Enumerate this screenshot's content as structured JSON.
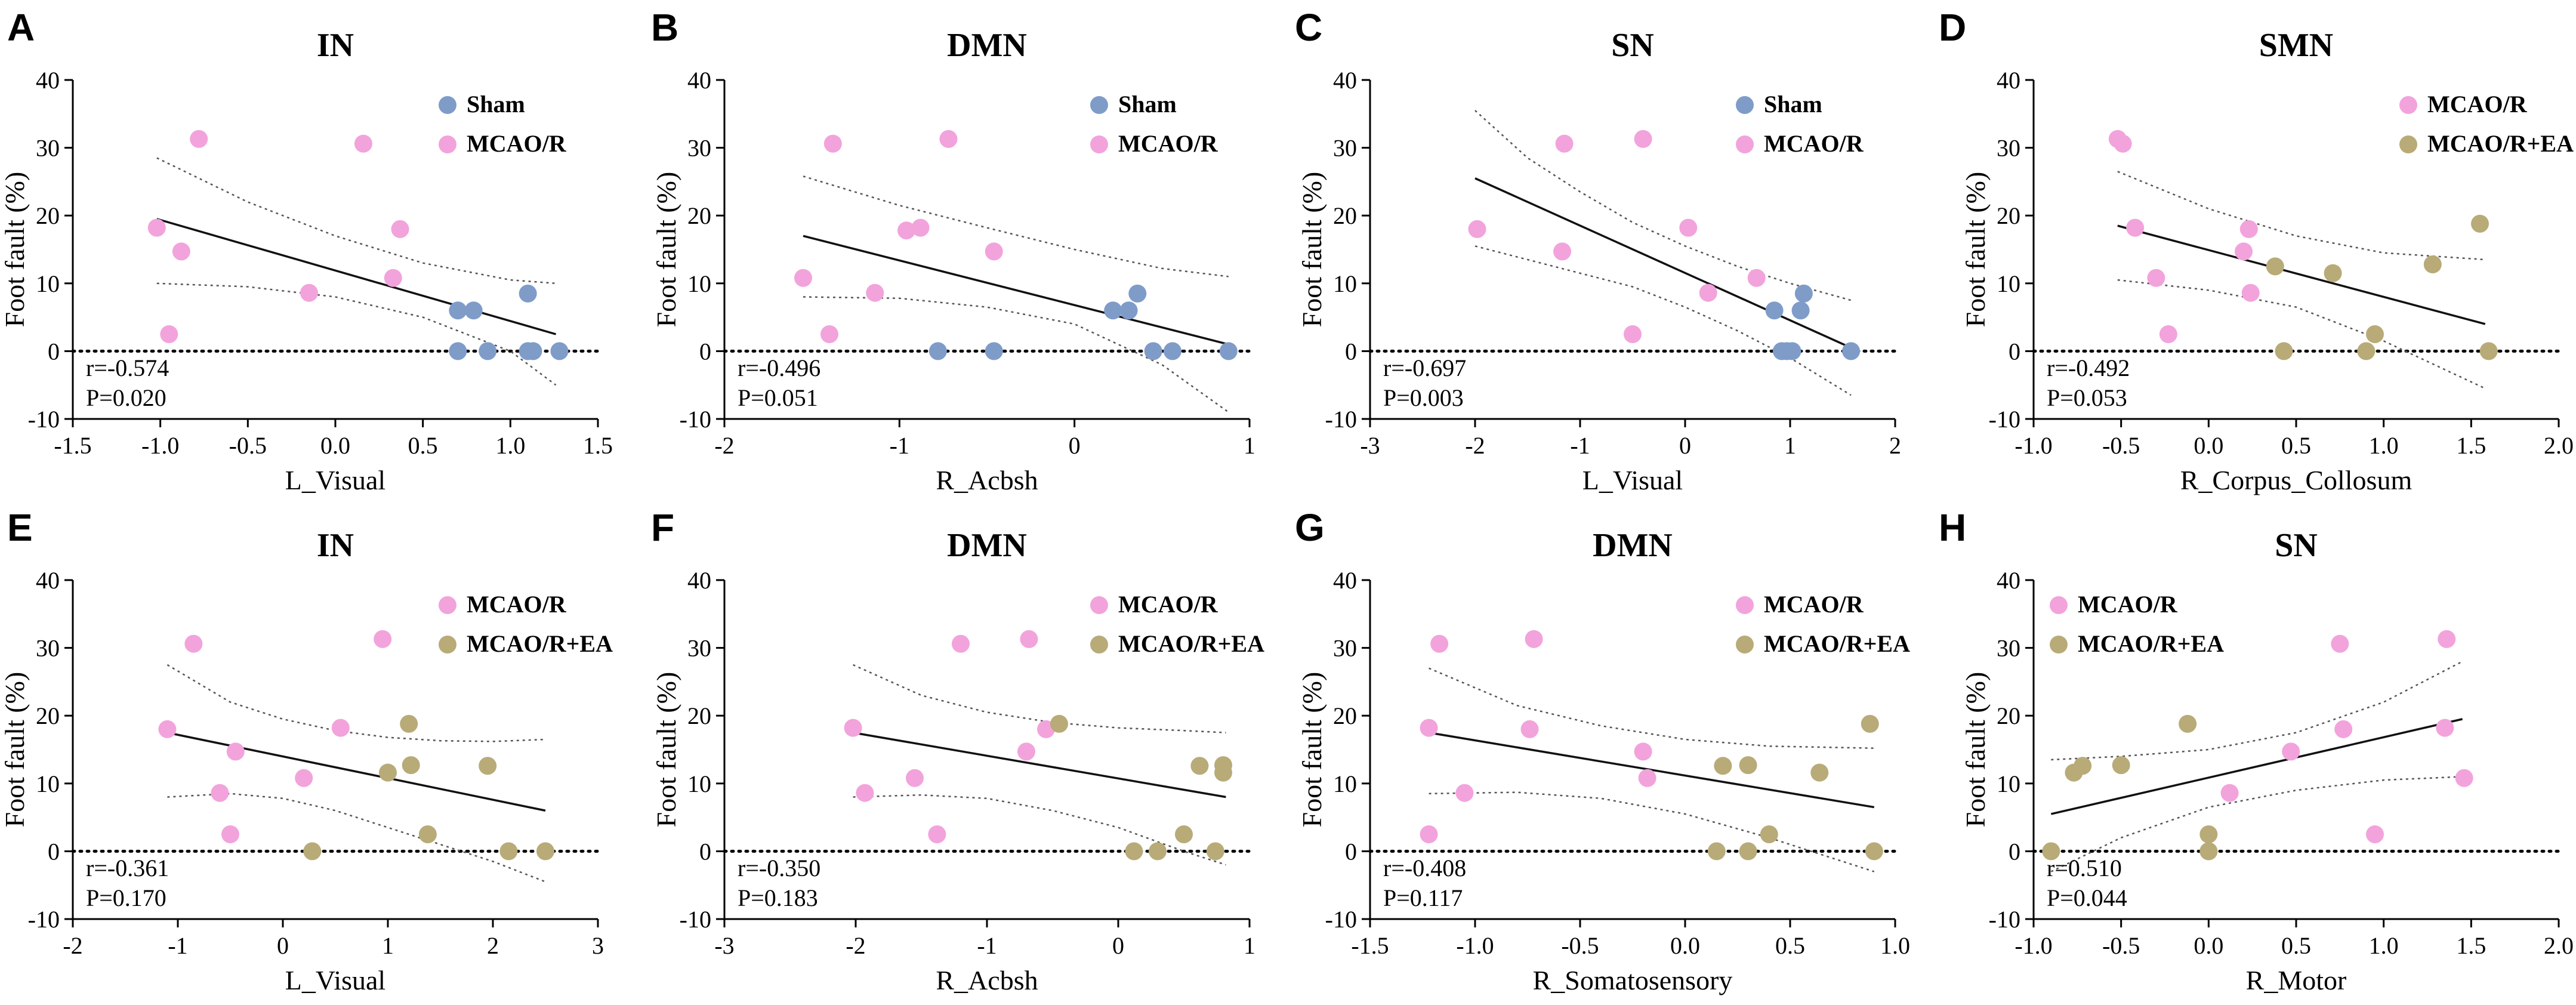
{
  "colors": {
    "sham": "#7f9cc9",
    "mcao": "#f2a3dc",
    "mcao_ea": "#b8ab78",
    "line": "#111111",
    "ci": "#555555"
  },
  "chart_data": [
    {
      "type": "scatter",
      "panel": "A",
      "title": "IN",
      "xlabel": "L_Visual",
      "ylabel": "Foot fault (%)",
      "xlim": [
        -1.5,
        1.5
      ],
      "xticks": [
        -1.5,
        -1.0,
        -0.5,
        0.0,
        0.5,
        1.0,
        1.5
      ],
      "xtick_labels": [
        "-1.5",
        "-1.0",
        "-0.5",
        "0.0",
        "0.5",
        "1.0",
        "1.5"
      ],
      "ylim": [
        -10,
        40
      ],
      "yticks": [
        -10,
        0,
        10,
        20,
        30,
        40
      ],
      "ytick_labels": [
        "-10",
        "0",
        "10",
        "20",
        "30",
        "40"
      ],
      "legend_position": "top-right",
      "stats": {
        "r": "r=-0.574",
        "p": "P=0.020"
      },
      "fit": {
        "x": [
          -1.02,
          1.26
        ],
        "y": [
          19.5,
          2.5
        ]
      },
      "ci_upper": {
        "x": [
          -1.02,
          -0.5,
          0.0,
          0.5,
          1.0,
          1.26
        ],
        "y": [
          28.5,
          22.0,
          17.0,
          13.0,
          10.5,
          10.0
        ]
      },
      "ci_lower": {
        "x": [
          -1.02,
          -0.5,
          0.0,
          0.5,
          1.0,
          1.26
        ],
        "y": [
          10.0,
          9.5,
          8.0,
          5.0,
          0.0,
          -5.0
        ]
      },
      "series": [
        {
          "name": "Sham",
          "color_key": "sham",
          "x": [
            0.7,
            0.79,
            0.7,
            0.87,
            1.1,
            1.13,
            1.28,
            1.1
          ],
          "y": [
            6,
            6,
            0,
            0,
            0,
            0,
            0,
            8.5
          ]
        },
        {
          "name": "MCAO/R",
          "color_key": "mcao",
          "x": [
            -1.02,
            -0.78,
            -0.88,
            -0.95,
            -0.15,
            0.16,
            0.37,
            0.33
          ],
          "y": [
            18.2,
            31.3,
            14.7,
            2.5,
            8.6,
            30.6,
            18,
            10.8
          ]
        }
      ]
    },
    {
      "type": "scatter",
      "panel": "B",
      "title": "DMN",
      "xlabel": "R_Acbsh",
      "ylabel": "Foot fault (%)",
      "xlim": [
        -2,
        1
      ],
      "xticks": [
        -2,
        -1,
        0,
        1
      ],
      "xtick_labels": [
        "-2",
        "-1",
        "0",
        "1"
      ],
      "ylim": [
        -10,
        40
      ],
      "yticks": [
        -10,
        0,
        10,
        20,
        30,
        40
      ],
      "ytick_labels": [
        "-10",
        "0",
        "10",
        "20",
        "30",
        "40"
      ],
      "legend_position": "top-right",
      "stats": {
        "r": "r=-0.496",
        "p": "P=0.051"
      },
      "fit": {
        "x": [
          -1.55,
          0.88
        ],
        "y": [
          17.0,
          1.0
        ]
      },
      "ci_upper": {
        "x": [
          -1.55,
          -1.0,
          -0.5,
          0.0,
          0.5,
          0.88
        ],
        "y": [
          25.8,
          21.5,
          18.2,
          15.0,
          12.2,
          11.0
        ]
      },
      "ci_lower": {
        "x": [
          -1.55,
          -1.0,
          -0.5,
          0.0,
          0.5,
          0.88
        ],
        "y": [
          8.0,
          7.8,
          6.5,
          4.0,
          -2.0,
          -9.0
        ]
      },
      "series": [
        {
          "name": "Sham",
          "color_key": "sham",
          "x": [
            0.22,
            0.31,
            0.36,
            -0.78,
            -0.46,
            0.45,
            0.56,
            0.88
          ],
          "y": [
            6,
            6,
            8.5,
            0,
            0,
            0,
            0,
            0
          ]
        },
        {
          "name": "MCAO/R",
          "color_key": "mcao",
          "x": [
            -1.55,
            -1.38,
            -1.4,
            -0.96,
            -0.88,
            -0.72,
            -1.14,
            -0.46
          ],
          "y": [
            10.8,
            30.6,
            2.5,
            17.8,
            18.2,
            31.3,
            8.6,
            14.7
          ]
        }
      ]
    },
    {
      "type": "scatter",
      "panel": "C",
      "title": "SN",
      "xlabel": "L_Visual",
      "ylabel": "Foot fault (%)",
      "xlim": [
        -3,
        2
      ],
      "xticks": [
        -3,
        -2,
        -1,
        0,
        1,
        2
      ],
      "xtick_labels": [
        "-3",
        "-2",
        "-1",
        "0",
        "1",
        "2"
      ],
      "ylim": [
        -10,
        40
      ],
      "yticks": [
        -10,
        0,
        10,
        20,
        30,
        40
      ],
      "ytick_labels": [
        "-10",
        "0",
        "10",
        "20",
        "30",
        "40"
      ],
      "legend_position": "top-right",
      "stats": {
        "r": "r=-0.697",
        "p": "P=0.003"
      },
      "fit": {
        "x": [
          -2.0,
          1.58
        ],
        "y": [
          25.5,
          0.5
        ]
      },
      "ci_upper": {
        "x": [
          -2.0,
          -1.5,
          -1.0,
          -0.5,
          0.0,
          0.5,
          1.0,
          1.58
        ],
        "y": [
          35.5,
          28.5,
          23.5,
          19.0,
          15.5,
          12.5,
          10.0,
          7.5
        ]
      },
      "ci_lower": {
        "x": [
          -2.0,
          -1.5,
          -1.0,
          -0.5,
          0.0,
          0.5,
          1.0,
          1.58
        ],
        "y": [
          15.5,
          13.5,
          11.5,
          9.5,
          6.5,
          3.0,
          -1.0,
          -6.5
        ]
      },
      "series": [
        {
          "name": "Sham",
          "color_key": "sham",
          "x": [
            0.85,
            1.13,
            1.1,
            0.92,
            1.02,
            0.97,
            1.58
          ],
          "y": [
            6,
            8.5,
            6,
            0,
            0,
            0,
            0
          ]
        },
        {
          "name": "MCAO/R",
          "color_key": "mcao",
          "x": [
            -1.98,
            -1.15,
            -1.17,
            -0.5,
            -0.4,
            0.03,
            0.22,
            0.68
          ],
          "y": [
            18,
            30.6,
            14.7,
            2.5,
            31.3,
            18.2,
            8.6,
            10.8
          ]
        }
      ]
    },
    {
      "type": "scatter",
      "panel": "D",
      "title": "SMN",
      "xlabel": "R_Corpus_Collosum",
      "ylabel": "Foot fault (%)",
      "xlim": [
        -1.0,
        2.0
      ],
      "xticks": [
        -1.0,
        -0.5,
        0.0,
        0.5,
        1.0,
        1.5,
        2.0
      ],
      "xtick_labels": [
        "-1.0",
        "-0.5",
        "0.0",
        "0.5",
        "1.0",
        "1.5",
        "2.0"
      ],
      "ylim": [
        -10,
        40
      ],
      "yticks": [
        -10,
        0,
        10,
        20,
        30,
        40
      ],
      "ytick_labels": [
        "-10",
        "0",
        "10",
        "20",
        "30",
        "40"
      ],
      "legend_position": "top-right",
      "stats": {
        "r": "r=-0.492",
        "p": "P=0.053"
      },
      "fit": {
        "x": [
          -0.52,
          1.58
        ],
        "y": [
          18.5,
          4.0
        ]
      },
      "ci_upper": {
        "x": [
          -0.52,
          0.0,
          0.5,
          1.0,
          1.58
        ],
        "y": [
          26.5,
          21.0,
          17.0,
          14.5,
          13.5
        ]
      },
      "ci_lower": {
        "x": [
          -0.52,
          0.0,
          0.5,
          1.0,
          1.58
        ],
        "y": [
          10.5,
          9.0,
          6.5,
          1.5,
          -5.5
        ]
      },
      "series": [
        {
          "name": "MCAO/R",
          "color_key": "mcao",
          "x": [
            -0.52,
            -0.49,
            -0.42,
            0.2,
            0.23,
            0.24,
            -0.3,
            -0.23
          ],
          "y": [
            31.3,
            30.6,
            18.2,
            14.7,
            18,
            8.6,
            10.8,
            2.5
          ]
        },
        {
          "name": "MCAO/R+EA",
          "color_key": "mcao_ea",
          "x": [
            0.38,
            0.43,
            0.71,
            0.9,
            0.95,
            1.28,
            1.55,
            1.6
          ],
          "y": [
            12.5,
            0,
            11.5,
            0,
            2.5,
            12.8,
            18.8,
            0
          ]
        }
      ]
    },
    {
      "type": "scatter",
      "panel": "E",
      "title": "IN",
      "xlabel": "L_Visual",
      "ylabel": "Foot fault (%)",
      "xlim": [
        -2,
        3
      ],
      "xticks": [
        -2,
        -1,
        0,
        1,
        2,
        3
      ],
      "xtick_labels": [
        "-2",
        "-1",
        "0",
        "1",
        "2",
        "3"
      ],
      "ylim": [
        -10,
        40
      ],
      "yticks": [
        -10,
        0,
        10,
        20,
        30,
        40
      ],
      "ytick_labels": [
        "-10",
        "0",
        "10",
        "20",
        "30",
        "40"
      ],
      "legend_position": "top-right",
      "stats": {
        "r": "r=-0.361",
        "p": "P=0.170"
      },
      "fit": {
        "x": [
          -1.1,
          2.5
        ],
        "y": [
          17.5,
          6.0
        ]
      },
      "ci_upper": {
        "x": [
          -1.1,
          -0.5,
          0.0,
          0.5,
          1.0,
          1.5,
          2.0,
          2.5
        ],
        "y": [
          27.5,
          22.0,
          19.5,
          17.8,
          16.8,
          16.3,
          16.2,
          16.5
        ]
      },
      "ci_lower": {
        "x": [
          -1.1,
          -0.5,
          0.0,
          0.5,
          1.0,
          1.5,
          2.0,
          2.5
        ],
        "y": [
          8.0,
          8.5,
          7.8,
          6.0,
          3.5,
          1.0,
          -1.5,
          -4.5
        ]
      },
      "series": [
        {
          "name": "MCAO/R",
          "color_key": "mcao",
          "x": [
            -1.1,
            -0.85,
            -0.45,
            -0.6,
            -0.5,
            0.2,
            0.55,
            0.95
          ],
          "y": [
            18,
            30.6,
            14.7,
            8.6,
            2.5,
            10.8,
            18.2,
            31.3
          ]
        },
        {
          "name": "MCAO/R+EA",
          "color_key": "mcao_ea",
          "x": [
            0.28,
            1.0,
            1.2,
            1.22,
            1.38,
            1.95,
            2.15,
            2.5
          ],
          "y": [
            0,
            11.6,
            18.8,
            12.7,
            2.5,
            12.6,
            0,
            0
          ]
        }
      ]
    },
    {
      "type": "scatter",
      "panel": "F",
      "title": "DMN",
      "xlabel": "R_Acbsh",
      "ylabel": "Foot fault (%)",
      "xlim": [
        -3,
        1
      ],
      "xticks": [
        -3,
        -2,
        -1,
        0,
        1
      ],
      "xtick_labels": [
        "-3",
        "-2",
        "-1",
        "0",
        "1"
      ],
      "ylim": [
        -10,
        40
      ],
      "yticks": [
        -10,
        0,
        10,
        20,
        30,
        40
      ],
      "ytick_labels": [
        "-10",
        "0",
        "10",
        "20",
        "30",
        "40"
      ],
      "legend_position": "top-right",
      "stats": {
        "r": "r=-0.350",
        "p": "P=0.183"
      },
      "fit": {
        "x": [
          -2.02,
          0.82
        ],
        "y": [
          17.5,
          8.0
        ]
      },
      "ci_upper": {
        "x": [
          -2.02,
          -1.5,
          -1.0,
          -0.5,
          0.0,
          0.5,
          0.82
        ],
        "y": [
          27.5,
          23.0,
          20.5,
          19.0,
          18.2,
          17.8,
          17.5
        ]
      },
      "ci_lower": {
        "x": [
          -2.02,
          -1.5,
          -1.0,
          -0.5,
          0.0,
          0.5,
          0.82
        ],
        "y": [
          8.0,
          8.3,
          7.8,
          6.0,
          3.5,
          0.0,
          -2.0
        ]
      },
      "series": [
        {
          "name": "MCAO/R",
          "color_key": "mcao",
          "x": [
            -2.02,
            -1.93,
            -1.2,
            -1.55,
            -0.68,
            -0.55,
            -0.7,
            -1.38
          ],
          "y": [
            18.2,
            8.6,
            30.6,
            10.8,
            31.3,
            18,
            14.7,
            2.5
          ]
        },
        {
          "name": "MCAO/R+EA",
          "color_key": "mcao_ea",
          "x": [
            -0.45,
            0.12,
            0.3,
            0.5,
            0.62,
            0.74,
            0.8,
            0.8
          ],
          "y": [
            18.8,
            0,
            0,
            2.5,
            12.6,
            0,
            12.7,
            11.6
          ]
        }
      ]
    },
    {
      "type": "scatter",
      "panel": "G",
      "title": "DMN",
      "xlabel": "R_Somatosensory",
      "ylabel": "Foot fault (%)",
      "xlim": [
        -1.5,
        1.0
      ],
      "xticks": [
        -1.5,
        -1.0,
        -0.5,
        0.0,
        0.5,
        1.0
      ],
      "xtick_labels": [
        "-1.5",
        "-1.0",
        "-0.5",
        "0.0",
        "0.5",
        "1.0"
      ],
      "ylim": [
        -10,
        40
      ],
      "yticks": [
        -10,
        0,
        10,
        20,
        30,
        40
      ],
      "ytick_labels": [
        "-10",
        "0",
        "10",
        "20",
        "30",
        "40"
      ],
      "legend_position": "top-right",
      "stats": {
        "r": "r=-0.408",
        "p": "P=0.117"
      },
      "fit": {
        "x": [
          -1.22,
          0.9
        ],
        "y": [
          17.5,
          6.5
        ]
      },
      "ci_upper": {
        "x": [
          -1.22,
          -0.8,
          -0.4,
          0.0,
          0.4,
          0.9
        ],
        "y": [
          27.0,
          21.5,
          18.5,
          16.5,
          15.5,
          15.2
        ]
      },
      "ci_lower": {
        "x": [
          -1.22,
          -0.8,
          -0.4,
          0.0,
          0.4,
          0.9
        ],
        "y": [
          8.5,
          8.7,
          7.8,
          5.5,
          2.0,
          -3.0
        ]
      },
      "series": [
        {
          "name": "MCAO/R",
          "color_key": "mcao",
          "x": [
            -1.22,
            -1.17,
            -1.22,
            -1.05,
            -0.72,
            -0.74,
            -0.2,
            -0.18
          ],
          "y": [
            18.2,
            30.6,
            2.5,
            8.6,
            31.3,
            18,
            14.7,
            10.8
          ]
        },
        {
          "name": "MCAO/R+EA",
          "color_key": "mcao_ea",
          "x": [
            0.15,
            0.18,
            0.3,
            0.3,
            0.4,
            0.64,
            0.88,
            0.9
          ],
          "y": [
            0,
            12.6,
            12.7,
            0,
            2.5,
            11.6,
            18.8,
            0
          ]
        }
      ]
    },
    {
      "type": "scatter",
      "panel": "H",
      "title": "SN",
      "xlabel": "R_Motor",
      "ylabel": "Foot fault (%)",
      "xlim": [
        -1.0,
        2.0
      ],
      "xticks": [
        -1.0,
        -0.5,
        0.0,
        0.5,
        1.0,
        1.5,
        2.0
      ],
      "xtick_labels": [
        "-1.0",
        "-0.5",
        "0.0",
        "0.5",
        "1.0",
        "1.5",
        "2.0"
      ],
      "ylim": [
        -10,
        40
      ],
      "yticks": [
        -10,
        0,
        10,
        20,
        30,
        40
      ],
      "ytick_labels": [
        "-10",
        "0",
        "10",
        "20",
        "30",
        "40"
      ],
      "legend_position": "top-left",
      "stats": {
        "r": "r=0.510",
        "p": "P=0.044"
      },
      "fit": {
        "x": [
          -0.9,
          1.45
        ],
        "y": [
          5.5,
          19.5
        ]
      },
      "ci_upper": {
        "x": [
          -0.9,
          -0.5,
          0.0,
          0.5,
          1.0,
          1.45
        ],
        "y": [
          13.5,
          14.0,
          15.0,
          17.5,
          22.0,
          28.0
        ]
      },
      "ci_lower": {
        "x": [
          -0.9,
          -0.5,
          0.0,
          0.5,
          1.0,
          1.45
        ],
        "y": [
          -3.0,
          2.0,
          6.5,
          9.0,
          10.5,
          11.0
        ]
      },
      "series": [
        {
          "name": "MCAO/R",
          "color_key": "mcao",
          "x": [
            0.12,
            0.47,
            0.77,
            0.95,
            0.75,
            1.36,
            1.35,
            1.46
          ],
          "y": [
            8.6,
            14.7,
            18,
            2.5,
            30.6,
            31.3,
            18.2,
            10.8
          ]
        },
        {
          "name": "MCAO/R+EA",
          "color_key": "mcao_ea",
          "x": [
            -0.9,
            -0.77,
            -0.72,
            -0.5,
            -0.12,
            0.0,
            0.0,
            0.0
          ],
          "y": [
            0,
            11.6,
            12.6,
            12.7,
            18.8,
            2.5,
            0,
            0
          ]
        }
      ]
    }
  ]
}
